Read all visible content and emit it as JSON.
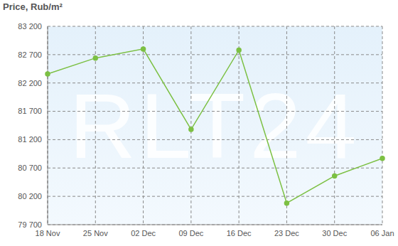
{
  "chart_data": {
    "type": "line",
    "title": "Price, Rub/m²",
    "annotations": [
      "RLT24"
    ],
    "categories": [
      "18 Nov",
      "25 Nov",
      "02 Dec",
      "09 Dec",
      "16 Dec",
      "23 Dec",
      "30 Dec",
      "06 Jan"
    ],
    "values": [
      82360,
      82640,
      82800,
      81380,
      82780,
      80080,
      80560,
      80870
    ],
    "color": "#7cc043",
    "ylim": [
      79700,
      83200
    ],
    "yticks": [
      {
        "value": 79700,
        "label": "79 700"
      },
      {
        "value": 80200,
        "label": "80 200"
      },
      {
        "value": 80700,
        "label": "80 700"
      },
      {
        "value": 81200,
        "label": "81 200"
      },
      {
        "value": 81700,
        "label": "81 700"
      },
      {
        "value": 82200,
        "label": "82 200"
      },
      {
        "value": 82700,
        "label": "82 700"
      },
      {
        "value": 83200,
        "label": "83 200"
      }
    ],
    "grid": true,
    "marker": "circle"
  }
}
